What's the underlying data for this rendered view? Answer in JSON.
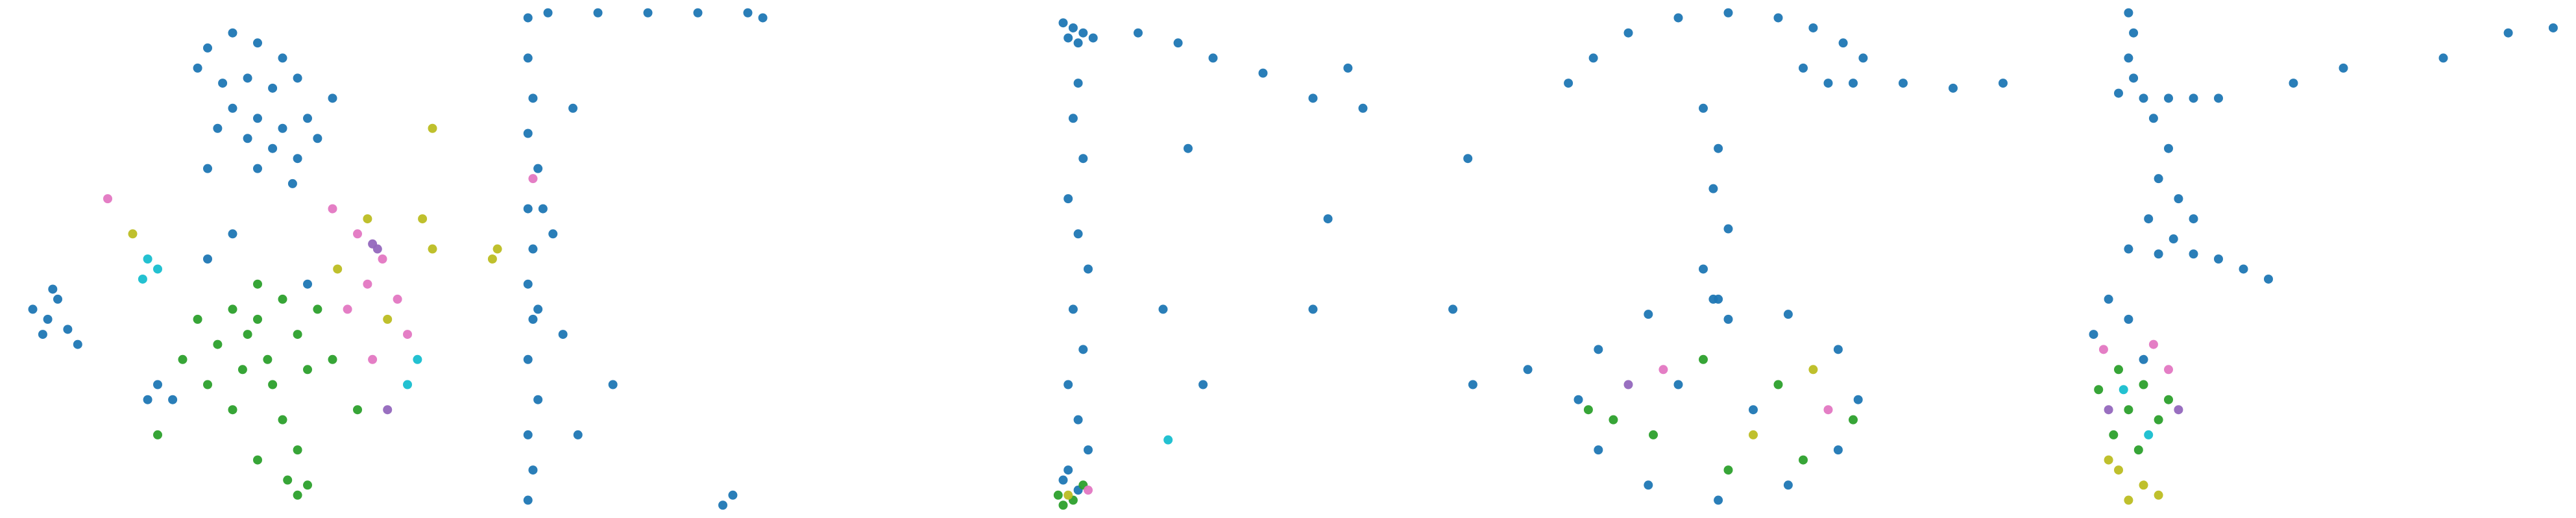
{
  "chart_data": [
    {
      "type": "scatter",
      "xlim": [
        0,
        100
      ],
      "ylim": [
        0,
        100
      ],
      "series": [
        {
          "color": "#1f77b4",
          "x": [
            40,
            45,
            50,
            55,
            38,
            43,
            48,
            53,
            58,
            45,
            50,
            55,
            60,
            48,
            53,
            58,
            42,
            62,
            50,
            57,
            40,
            65,
            5,
            8,
            10,
            12,
            7,
            14,
            9,
            30,
            33,
            28,
            45,
            40,
            60
          ],
          "values": [
            92,
            95,
            93,
            90,
            88,
            85,
            86,
            84,
            86,
            80,
            78,
            76,
            78,
            74,
            72,
            70,
            76,
            74,
            68,
            65,
            68,
            82,
            40,
            38,
            42,
            36,
            35,
            33,
            44,
            25,
            22,
            22,
            55,
            50,
            45
          ]
        },
        {
          "color": "#2ca02c",
          "x": [
            45,
            50,
            55,
            48,
            52,
            58,
            42,
            47,
            53,
            60,
            38,
            62,
            45,
            55,
            50,
            40,
            65,
            35,
            58,
            58,
            60,
            56,
            30,
            70,
            50
          ],
          "values": [
            40,
            38,
            42,
            35,
            30,
            35,
            33,
            28,
            25,
            28,
            38,
            40,
            20,
            18,
            45,
            25,
            30,
            30,
            12,
            3,
            5,
            6,
            15,
            20,
            10
          ]
        },
        {
          "color": "#e377c2",
          "x": [
            70,
            75,
            72,
            68,
            78,
            80,
            65,
            20,
            73
          ],
          "values": [
            55,
            50,
            45,
            40,
            42,
            35,
            60,
            62,
            30
          ]
        },
        {
          "color": "#bcbd22",
          "x": [
            72,
            76,
            85,
            83,
            97,
            98,
            85,
            25,
            66
          ],
          "values": [
            58,
            38,
            52,
            58,
            50,
            52,
            76,
            55,
            48
          ]
        },
        {
          "color": "#17becf",
          "x": [
            28,
            30,
            27,
            80,
            82
          ],
          "values": [
            50,
            48,
            46,
            25,
            30
          ]
        },
        {
          "color": "#9467bd",
          "x": [
            73,
            74,
            76
          ],
          "values": [
            53,
            52,
            20
          ]
        }
      ]
    },
    {
      "type": "scatter",
      "xlim": [
        0,
        100
      ],
      "ylim": [
        0,
        100
      ],
      "series": [
        {
          "color": "#1f77b4",
          "x": [
            1,
            1,
            2,
            1,
            3,
            1,
            2,
            1,
            2,
            1,
            3,
            1,
            2,
            1,
            3,
            4,
            6,
            8,
            10,
            11,
            18,
            40,
            42,
            5,
            15,
            25,
            35,
            45,
            48
          ],
          "values": [
            98,
            90,
            82,
            75,
            68,
            60,
            52,
            45,
            38,
            30,
            22,
            15,
            8,
            2,
            40,
            60,
            55,
            35,
            80,
            15,
            25,
            1,
            3,
            99,
            99,
            99,
            99,
            99,
            98
          ]
        },
        {
          "color": "#e377c2",
          "x": [
            2
          ],
          "values": [
            66
          ]
        }
      ]
    },
    {
      "type": "scatter",
      "xlim": [
        0,
        100
      ],
      "ylim": [
        0,
        100
      ],
      "series": [
        {
          "color": "#1f77b4",
          "x": [
            5,
            7,
            9,
            6,
            8,
            11,
            8,
            7,
            9,
            6,
            8,
            10,
            7,
            9,
            6,
            8,
            10,
            5,
            8,
            6,
            20,
            28,
            35,
            45,
            55,
            65,
            62,
            58,
            33,
            25,
            55,
            83,
            87,
            98,
            30,
            86
          ],
          "values": [
            97,
            96,
            95,
            94,
            93,
            94,
            85,
            78,
            70,
            62,
            55,
            48,
            40,
            32,
            25,
            18,
            12,
            6,
            4,
            8,
            95,
            93,
            90,
            87,
            82,
            80,
            88,
            58,
            25,
            40,
            40,
            40,
            25,
            28,
            72,
            70
          ]
        },
        {
          "color": "#2ca02c",
          "x": [
            4,
            7,
            9,
            5
          ],
          "values": [
            3,
            2,
            5,
            1
          ]
        },
        {
          "color": "#e377c2",
          "x": [
            10
          ],
          "values": [
            4
          ]
        },
        {
          "color": "#bcbd22",
          "x": [
            6
          ],
          "values": [
            3
          ]
        },
        {
          "color": "#17becf",
          "x": [
            26
          ],
          "values": [
            14
          ]
        }
      ]
    },
    {
      "type": "scatter",
      "xlim": [
        0,
        100
      ],
      "ylim": [
        0,
        100
      ],
      "series": [
        {
          "color": "#1f77b4",
          "x": [
            3,
            8,
            15,
            25,
            35,
            45,
            52,
            58,
            62,
            55,
            50,
            60,
            70,
            80,
            90,
            30,
            33,
            32,
            35,
            30,
            32,
            35,
            61,
            57,
            47,
            33,
            19,
            9,
            5,
            9,
            19,
            33,
            47,
            57,
            25,
            40
          ],
          "values": [
            85,
            90,
            95,
            98,
            99,
            98,
            96,
            93,
            90,
            85,
            88,
            85,
            85,
            84,
            85,
            80,
            72,
            64,
            56,
            48,
            42,
            38,
            22,
            32,
            39,
            42,
            39,
            32,
            22,
            12,
            5,
            2,
            5,
            12,
            25,
            20
          ]
        },
        {
          "color": "#2ca02c",
          "x": [
            20,
            30,
            45,
            12,
            50,
            35,
            7,
            60
          ],
          "values": [
            15,
            30,
            25,
            18,
            10,
            8,
            20,
            18
          ]
        },
        {
          "color": "#e377c2",
          "x": [
            22,
            55
          ],
          "values": [
            28,
            20
          ]
        },
        {
          "color": "#bcbd22",
          "x": [
            40,
            52
          ],
          "values": [
            15,
            28
          ]
        },
        {
          "color": "#9467bd",
          "x": [
            15
          ],
          "values": [
            25
          ]
        }
      ]
    },
    {
      "type": "scatter",
      "xlim": [
        0,
        100
      ],
      "ylim": [
        0,
        100
      ],
      "series": [
        {
          "color": "#1f77b4",
          "x": [
            12,
            13,
            12,
            13,
            10,
            15,
            20,
            25,
            30,
            17,
            20,
            18,
            22,
            16,
            21,
            25,
            12,
            18,
            25,
            30,
            35,
            40,
            8,
            12,
            5,
            15,
            45,
            55,
            75,
            88,
            97
          ],
          "values": [
            99,
            95,
            90,
            86,
            83,
            82,
            82,
            82,
            82,
            78,
            72,
            66,
            62,
            58,
            54,
            58,
            52,
            51,
            51,
            50,
            48,
            46,
            42,
            38,
            35,
            30,
            85,
            88,
            90,
            95,
            96
          ]
        },
        {
          "color": "#2ca02c",
          "x": [
            10,
            15,
            12,
            18,
            9,
            14,
            20,
            6
          ],
          "values": [
            28,
            25,
            20,
            18,
            15,
            12,
            22,
            24
          ]
        },
        {
          "color": "#e377c2",
          "x": [
            7,
            17,
            20
          ],
          "values": [
            32,
            33,
            28
          ]
        },
        {
          "color": "#bcbd22",
          "x": [
            10,
            15,
            18,
            12,
            8
          ],
          "values": [
            8,
            5,
            3,
            2,
            10
          ]
        },
        {
          "color": "#17becf",
          "x": [
            16,
            11
          ],
          "values": [
            15,
            24
          ]
        },
        {
          "color": "#9467bd",
          "x": [
            22,
            8
          ],
          "values": [
            20,
            20
          ]
        }
      ]
    }
  ]
}
